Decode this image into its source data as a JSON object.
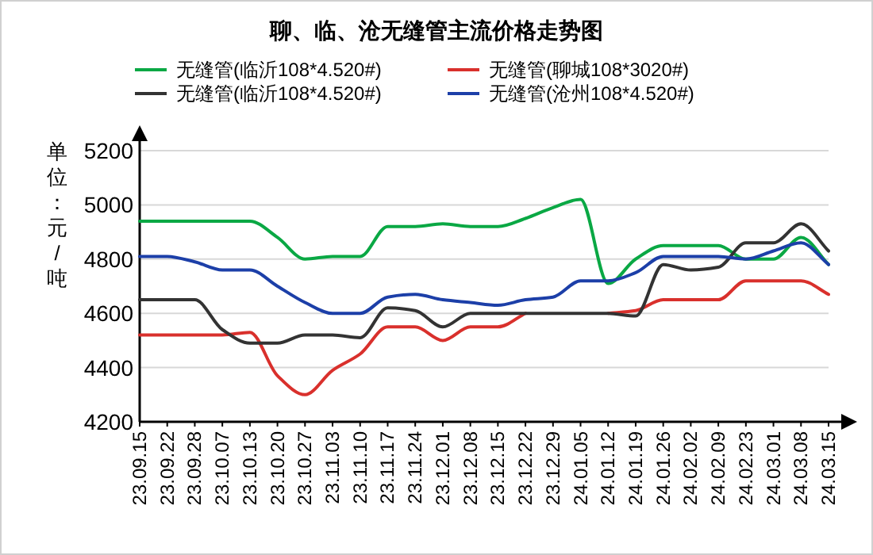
{
  "chart_data": {
    "type": "line",
    "title": "聊、临、沧无缝管主流价格走势图",
    "ylabel": "单位：元/吨",
    "categories": [
      "23.09.15",
      "23.09.22",
      "23.09.28",
      "23.10.07",
      "23.10.13",
      "23.10.20",
      "23.10.27",
      "23.11.03",
      "23.11.10",
      "23.11.17",
      "23.11.24",
      "23.12.01",
      "23.12.08",
      "23.12.15",
      "23.12.22",
      "23.12.29",
      "24.01.05",
      "24.01.12",
      "24.01.19",
      "24.01.26",
      "24.02.02",
      "24.02.09",
      "24.02.23",
      "24.03.01",
      "24.03.08",
      "24.03.15"
    ],
    "series": [
      {
        "name": "无缝管(临沂108*4.520#)",
        "color": "#0aa844",
        "values": [
          4940,
          4940,
          4940,
          4940,
          4940,
          4880,
          4800,
          4810,
          4810,
          4920,
          4920,
          4930,
          4920,
          4920,
          4950,
          4990,
          5020,
          4710,
          4800,
          4850,
          4850,
          4850,
          4800,
          4800,
          4880,
          4780
        ]
      },
      {
        "name": "无缝管(聊城108*3020#)",
        "color": "#d9302c",
        "values": [
          4520,
          4520,
          4520,
          4520,
          4530,
          4370,
          4300,
          4390,
          4450,
          4550,
          4550,
          4500,
          4550,
          4550,
          4600,
          null,
          null,
          4600,
          4610,
          4650,
          4650,
          4650,
          4720,
          4720,
          4720,
          4670
        ]
      },
      {
        "name": "无缝管(临沂108*4.520#)",
        "color": "#333333",
        "values": [
          4650,
          4650,
          4650,
          4540,
          4490,
          4490,
          4520,
          4520,
          4510,
          4620,
          4610,
          4550,
          4600,
          4600,
          4600,
          4600,
          4600,
          4600,
          4590,
          4780,
          4760,
          4770,
          4860,
          4860,
          4930,
          4830
        ]
      },
      {
        "name": "无缝管(沧州108*4.520#)",
        "color": "#1c3fa8",
        "values": [
          4810,
          4810,
          4790,
          4760,
          4760,
          4700,
          4640,
          4600,
          4600,
          4660,
          4670,
          4650,
          4640,
          4630,
          4650,
          4660,
          4720,
          4720,
          4750,
          4810,
          4810,
          4810,
          4800,
          4830,
          4860,
          4780
        ]
      }
    ],
    "ylim": [
      4200,
      5200
    ],
    "yticks": [
      4200,
      4400,
      4600,
      4800,
      5000,
      5200
    ],
    "grid": "y",
    "legend": "top"
  }
}
